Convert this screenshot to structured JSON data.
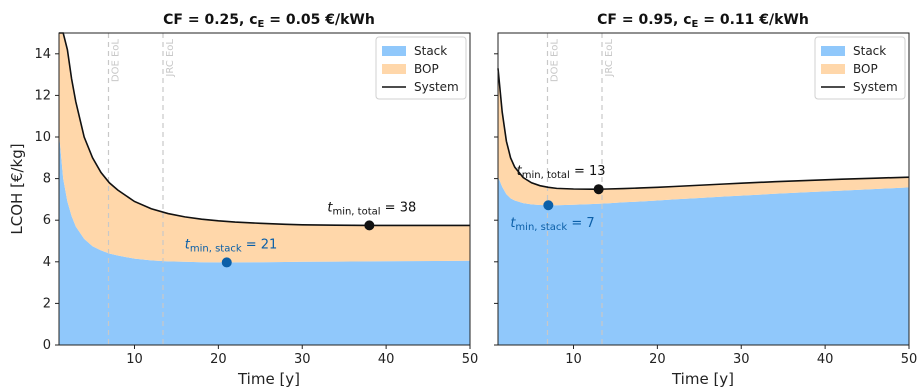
{
  "chart_data": [
    {
      "type": "area",
      "title_main": "CF = 0.25, c",
      "title_sub": "E",
      "title_rest": " = 0.05 €/kWh",
      "xlabel": "Time [y]",
      "ylabel": "LCOH [€/kg]",
      "xlim": [
        1,
        50
      ],
      "ylim": [
        0,
        15
      ],
      "xticks": [
        "10",
        "20",
        "30",
        "40",
        "50"
      ],
      "yticks": [
        "0",
        "2",
        "4",
        "6",
        "8",
        "10",
        "12",
        "14"
      ],
      "legend": {
        "position": "top-right",
        "entries": [
          "Stack",
          "BOP",
          "System"
        ]
      },
      "vlines": [
        {
          "x": 6.9,
          "label": "DOE EoL"
        },
        {
          "x": 13.4,
          "label": "JRC EoL"
        }
      ],
      "x": [
        1,
        1.5,
        2,
        2.5,
        3,
        4,
        5,
        6,
        7,
        8,
        10,
        12,
        14,
        16,
        18,
        20,
        22,
        25,
        28,
        30,
        34,
        38,
        42,
        46,
        50
      ],
      "series": [
        {
          "name": "Stack",
          "values": [
            10.2,
            8.0,
            6.9,
            6.2,
            5.7,
            5.1,
            4.75,
            4.55,
            4.4,
            4.3,
            4.15,
            4.07,
            4.02,
            4.0,
            3.98,
            3.97,
            3.97,
            3.98,
            3.99,
            4.0,
            4.01,
            4.02,
            4.03,
            4.04,
            4.05
          ]
        },
        {
          "name": "System",
          "values": [
            15,
            15,
            14.2,
            12.8,
            11.7,
            10.0,
            9.0,
            8.3,
            7.8,
            7.45,
            6.9,
            6.55,
            6.32,
            6.16,
            6.05,
            5.97,
            5.91,
            5.85,
            5.8,
            5.78,
            5.76,
            5.75,
            5.75,
            5.75,
            5.75
          ]
        }
      ],
      "annotations": [
        {
          "label_main": "t",
          "label_sub": "min, stack",
          "label_rest": " = 21",
          "x": 21,
          "y": 3.97,
          "color": "#0b5fa8"
        },
        {
          "label_main": "t",
          "label_sub": "min, total",
          "label_rest": " = 38",
          "x": 38,
          "y": 5.75,
          "color": "#111111"
        }
      ]
    },
    {
      "type": "area",
      "title_main": "CF = 0.95, c",
      "title_sub": "E",
      "title_rest": " = 0.11 €/kWh",
      "xlabel": "Time [y]",
      "xlim": [
        1,
        50
      ],
      "ylim": [
        0,
        15
      ],
      "xticks": [
        "10",
        "20",
        "30",
        "40",
        "50"
      ],
      "legend": {
        "position": "top-right",
        "entries": [
          "Stack",
          "BOP",
          "System"
        ]
      },
      "vlines": [
        {
          "x": 6.9,
          "label": "DOE EoL"
        },
        {
          "x": 13.4,
          "label": "JRC EoL"
        }
      ],
      "x": [
        1,
        1.5,
        2,
        2.5,
        3,
        4,
        5,
        6,
        7,
        8,
        10,
        12,
        13,
        14,
        16,
        18,
        20,
        22,
        25,
        28,
        30,
        34,
        38,
        42,
        46,
        50
      ],
      "series": [
        {
          "name": "Stack",
          "values": [
            8.1,
            7.6,
            7.25,
            7.05,
            6.95,
            6.82,
            6.76,
            6.73,
            6.72,
            6.72,
            6.74,
            6.77,
            6.79,
            6.81,
            6.86,
            6.9,
            6.95,
            7.0,
            7.07,
            7.14,
            7.18,
            7.27,
            7.35,
            7.42,
            7.5,
            7.58
          ]
        },
        {
          "name": "System",
          "values": [
            13.3,
            11.2,
            9.8,
            9.0,
            8.55,
            8.05,
            7.8,
            7.66,
            7.58,
            7.53,
            7.5,
            7.49,
            7.49,
            7.5,
            7.52,
            7.55,
            7.58,
            7.62,
            7.68,
            7.74,
            7.78,
            7.85,
            7.91,
            7.97,
            8.02,
            8.07
          ]
        }
      ],
      "annotations": [
        {
          "label_main": "t",
          "label_sub": "min, stack",
          "label_rest": " = 7",
          "x": 7,
          "y": 6.72,
          "color": "#0b5fa8"
        },
        {
          "label_main": "t",
          "label_sub": "min, total",
          "label_rest": " = 13",
          "x": 13,
          "y": 7.49,
          "color": "#111111"
        }
      ]
    }
  ],
  "colors": {
    "stack": "#90c8fb",
    "bop": "#ffd7aa",
    "system": "#111111",
    "stack_point": "#0b5fa8",
    "vline": "#c8c8c8"
  }
}
